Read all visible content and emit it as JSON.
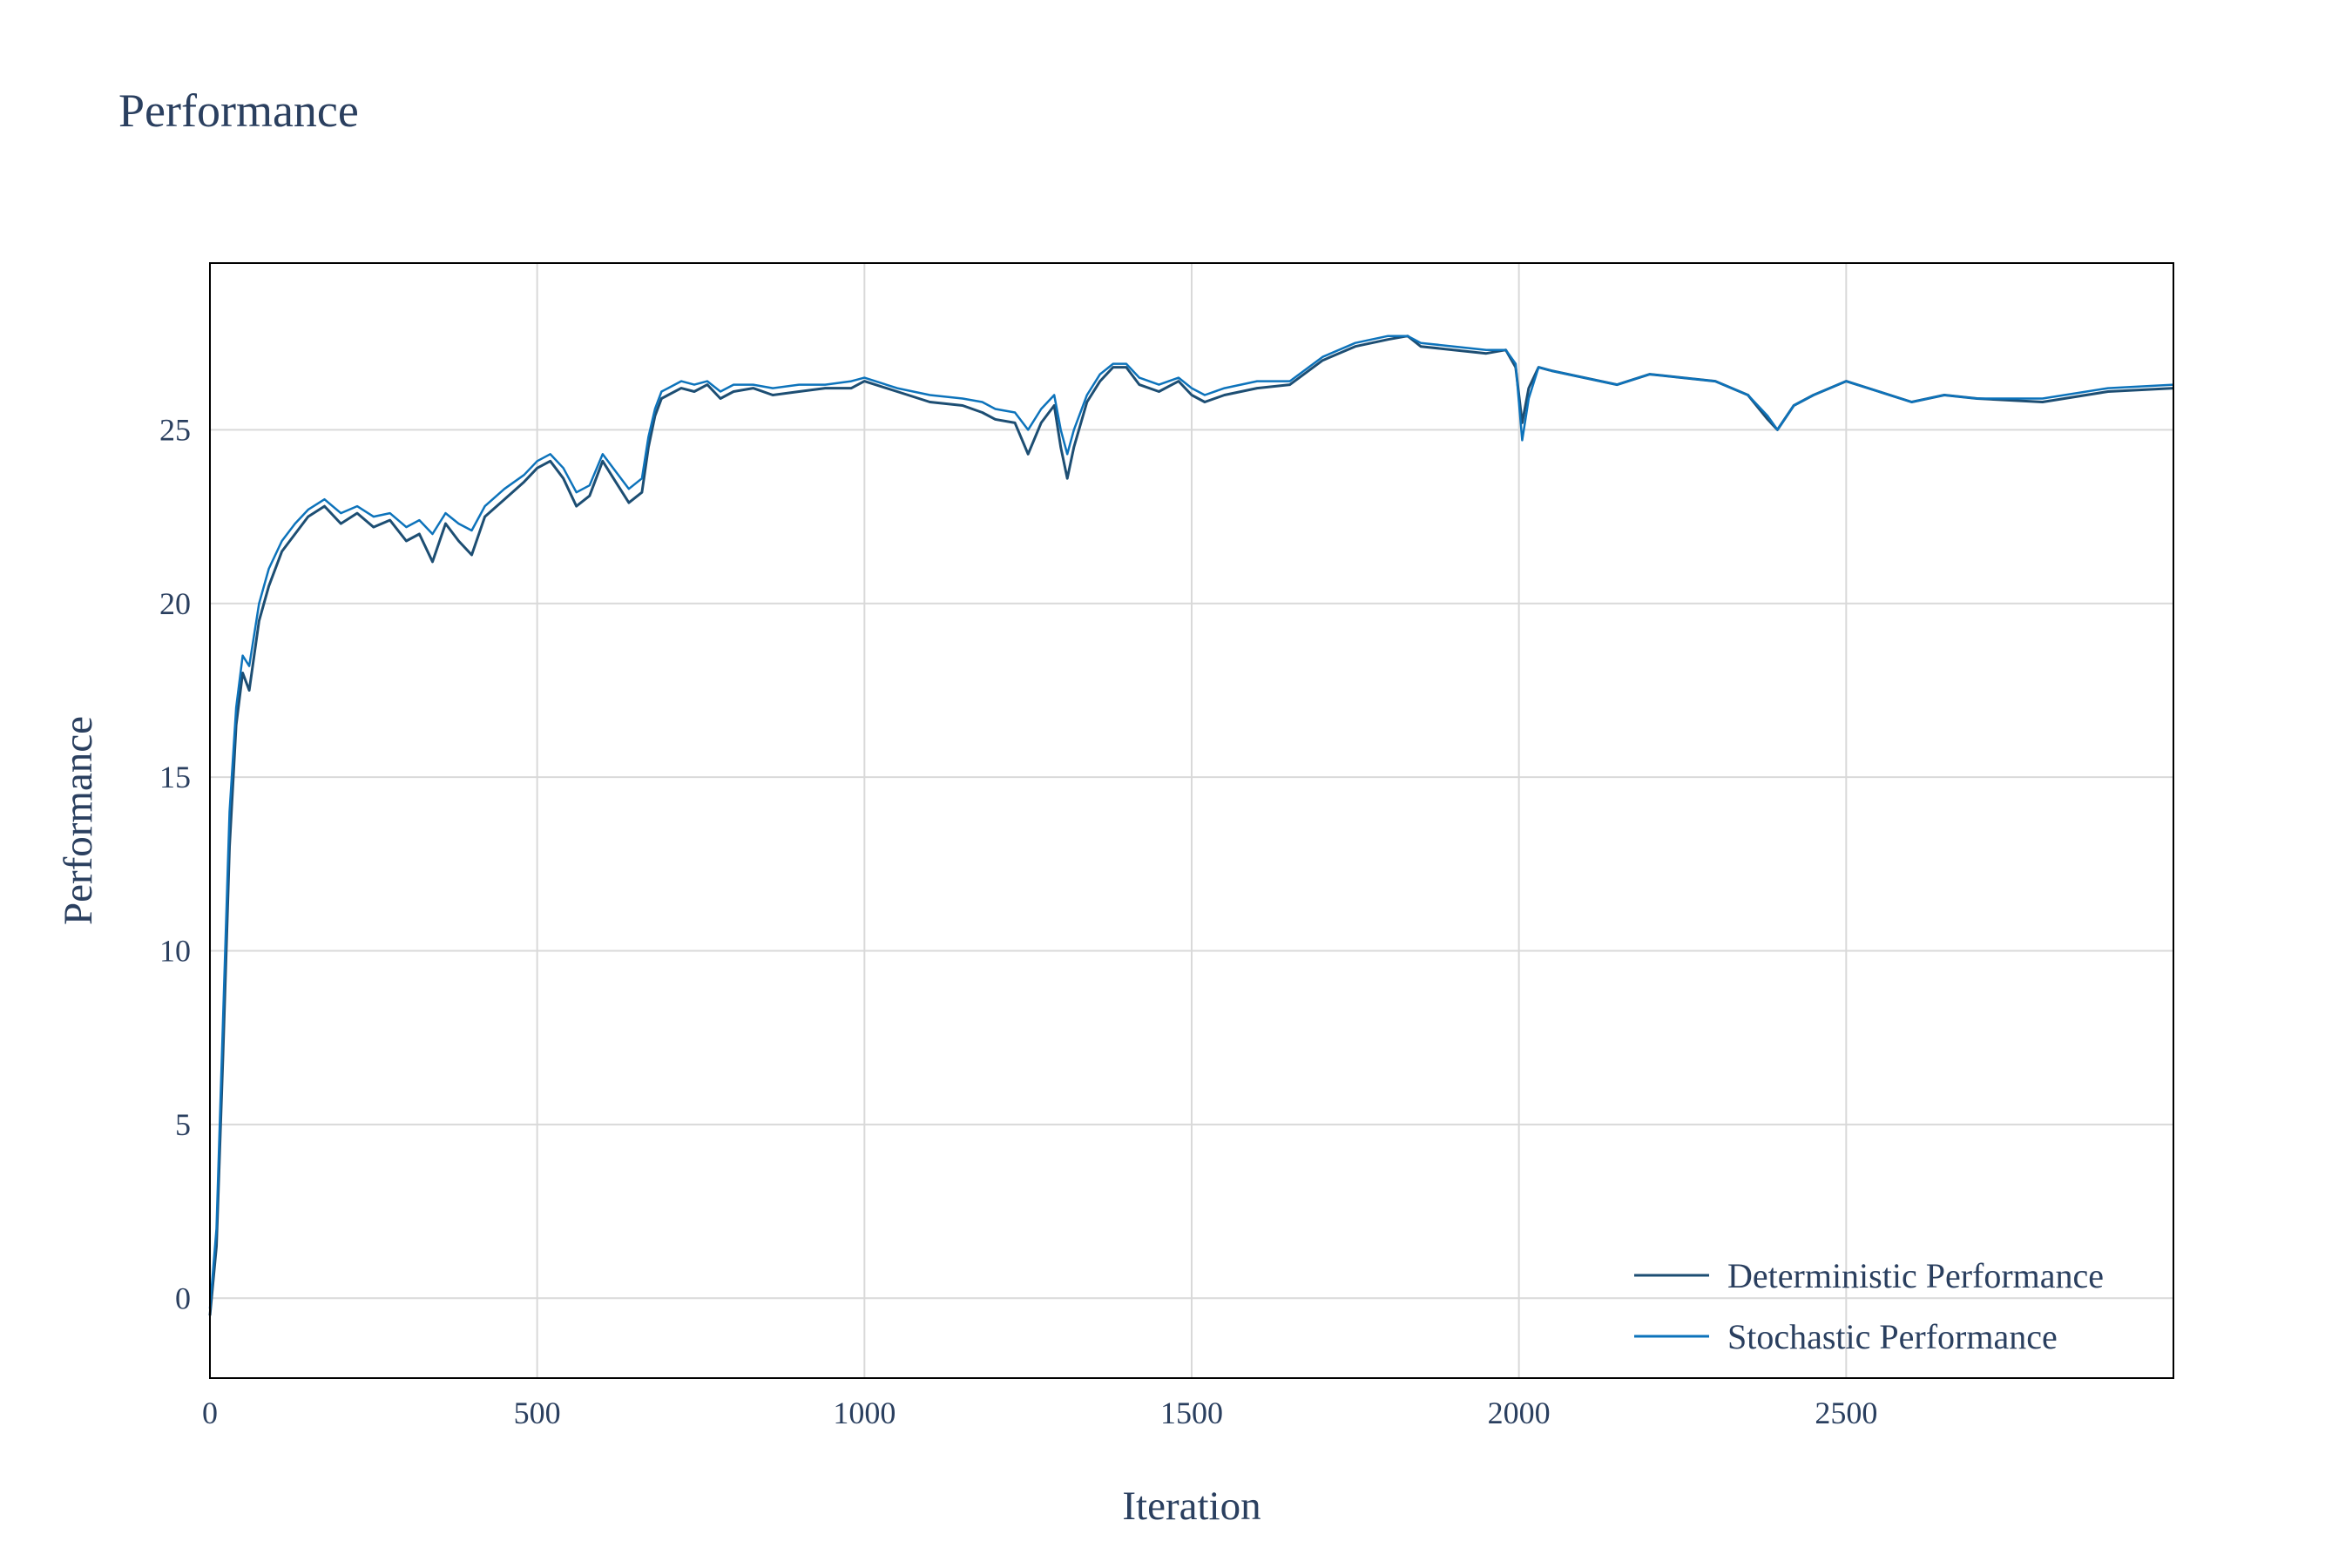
{
  "colors": {
    "deterministic": "#1d4e73",
    "stochastic": "#0d73bb",
    "grid": "#d9d9d9",
    "text": "#2a3f5f"
  },
  "chart_data": {
    "type": "line",
    "title": "Performance",
    "xlabel": "Iteration",
    "ylabel": "Performance",
    "xlim": [
      0,
      3000
    ],
    "ylim": [
      -2.3,
      29.8
    ],
    "xticks": [
      0,
      500,
      1000,
      1500,
      2000,
      2500
    ],
    "xtick_labels": [
      "0",
      "500",
      "1000",
      "1500",
      "2000",
      "2500"
    ],
    "yticks": [
      0,
      5,
      10,
      15,
      20,
      25
    ],
    "ytick_labels": [
      "0",
      "5",
      "10",
      "15",
      "20",
      "25"
    ],
    "grid": true,
    "legend_position": "bottom-right",
    "series": [
      {
        "name": "Deterministic Performance",
        "color": "#1d4e73",
        "x": [
          0,
          10,
          20,
          30,
          40,
          50,
          60,
          75,
          90,
          110,
          130,
          150,
          175,
          200,
          225,
          250,
          275,
          300,
          320,
          340,
          360,
          380,
          400,
          420,
          450,
          480,
          500,
          520,
          540,
          560,
          580,
          600,
          620,
          640,
          660,
          670,
          680,
          690,
          700,
          720,
          740,
          760,
          780,
          800,
          830,
          860,
          900,
          940,
          980,
          1000,
          1050,
          1100,
          1150,
          1180,
          1200,
          1230,
          1250,
          1270,
          1290,
          1300,
          1310,
          1320,
          1340,
          1360,
          1380,
          1400,
          1420,
          1450,
          1480,
          1500,
          1520,
          1550,
          1600,
          1650,
          1700,
          1750,
          1800,
          1830,
          1850,
          1900,
          1950,
          1980,
          1995,
          2005,
          2015,
          2030,
          2050,
          2100,
          2150,
          2200,
          2250,
          2300,
          2350,
          2380,
          2395,
          2420,
          2450,
          2500,
          2550,
          2600,
          2650,
          2700,
          2800,
          2900,
          3000
        ],
        "y": [
          -0.5,
          1.5,
          7.0,
          13.0,
          16.5,
          18.0,
          17.5,
          19.5,
          20.5,
          21.5,
          22.0,
          22.5,
          22.8,
          22.3,
          22.6,
          22.2,
          22.4,
          21.8,
          22.0,
          21.2,
          22.3,
          21.8,
          21.4,
          22.5,
          23.0,
          23.5,
          23.9,
          24.1,
          23.6,
          22.8,
          23.1,
          24.1,
          23.5,
          22.9,
          23.2,
          24.5,
          25.4,
          25.9,
          26.0,
          26.2,
          26.1,
          26.3,
          25.9,
          26.1,
          26.2,
          26.0,
          26.1,
          26.2,
          26.2,
          26.4,
          26.1,
          25.8,
          25.7,
          25.5,
          25.3,
          25.2,
          24.3,
          25.2,
          25.7,
          24.5,
          23.6,
          24.5,
          25.8,
          26.4,
          26.8,
          26.8,
          26.3,
          26.1,
          26.4,
          26.0,
          25.8,
          26.0,
          26.2,
          26.3,
          27.0,
          27.4,
          27.6,
          27.7,
          27.4,
          27.3,
          27.2,
          27.3,
          26.8,
          25.2,
          26.2,
          26.8,
          26.7,
          26.5,
          26.3,
          26.6,
          26.5,
          26.4,
          26.0,
          25.3,
          25.0,
          25.7,
          26.0,
          26.4,
          26.1,
          25.8,
          26.0,
          25.9,
          25.8,
          26.1,
          26.2
        ]
      },
      {
        "name": "Stochastic Performance",
        "color": "#0d73bb",
        "x": [
          0,
          10,
          20,
          30,
          40,
          50,
          60,
          75,
          90,
          110,
          130,
          150,
          175,
          200,
          225,
          250,
          275,
          300,
          320,
          340,
          360,
          380,
          400,
          420,
          450,
          480,
          500,
          520,
          540,
          560,
          580,
          600,
          620,
          640,
          660,
          670,
          680,
          690,
          700,
          720,
          740,
          760,
          780,
          800,
          830,
          860,
          900,
          940,
          980,
          1000,
          1050,
          1100,
          1150,
          1180,
          1200,
          1230,
          1250,
          1270,
          1290,
          1300,
          1310,
          1320,
          1340,
          1360,
          1380,
          1400,
          1420,
          1450,
          1480,
          1500,
          1520,
          1550,
          1600,
          1650,
          1700,
          1750,
          1800,
          1830,
          1850,
          1900,
          1950,
          1980,
          1995,
          2005,
          2015,
          2030,
          2050,
          2100,
          2150,
          2200,
          2250,
          2300,
          2350,
          2380,
          2395,
          2420,
          2450,
          2500,
          2550,
          2600,
          2650,
          2700,
          2800,
          2900,
          3000
        ],
        "y": [
          -0.3,
          2.0,
          8.0,
          14.0,
          17.0,
          18.5,
          18.2,
          20.0,
          21.0,
          21.8,
          22.3,
          22.7,
          23.0,
          22.6,
          22.8,
          22.5,
          22.6,
          22.2,
          22.4,
          22.0,
          22.6,
          22.3,
          22.1,
          22.8,
          23.3,
          23.7,
          24.1,
          24.3,
          23.9,
          23.2,
          23.4,
          24.3,
          23.8,
          23.3,
          23.6,
          24.8,
          25.6,
          26.1,
          26.2,
          26.4,
          26.3,
          26.4,
          26.1,
          26.3,
          26.3,
          26.2,
          26.3,
          26.3,
          26.4,
          26.5,
          26.2,
          26.0,
          25.9,
          25.8,
          25.6,
          25.5,
          25.0,
          25.6,
          26.0,
          25.0,
          24.3,
          25.0,
          26.0,
          26.6,
          26.9,
          26.9,
          26.5,
          26.3,
          26.5,
          26.2,
          26.0,
          26.2,
          26.4,
          26.4,
          27.1,
          27.5,
          27.7,
          27.7,
          27.5,
          27.4,
          27.3,
          27.3,
          26.9,
          24.7,
          25.9,
          26.8,
          26.7,
          26.5,
          26.3,
          26.6,
          26.5,
          26.4,
          26.0,
          25.4,
          25.0,
          25.7,
          26.0,
          26.4,
          26.1,
          25.8,
          26.0,
          25.9,
          25.9,
          26.2,
          26.3
        ]
      }
    ]
  }
}
